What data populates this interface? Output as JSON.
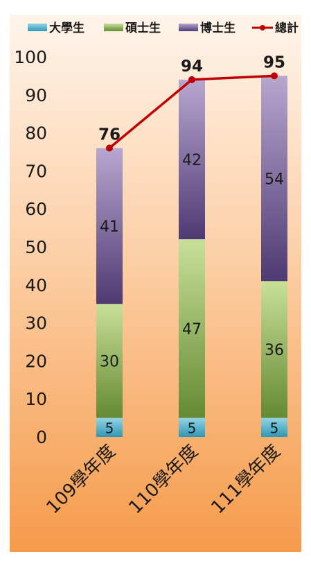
{
  "chart_data": {
    "type": "bar",
    "stacked": true,
    "categories": [
      "109學年度",
      "110學年度",
      "111學年度"
    ],
    "series": [
      {
        "name": "大學生",
        "values": [
          5,
          5,
          5
        ],
        "color": "#4bacc6"
      },
      {
        "name": "碩士生",
        "values": [
          30,
          47,
          36
        ],
        "color": "#9bbb59"
      },
      {
        "name": "博士生",
        "values": [
          41,
          42,
          54
        ],
        "color": "#8064a2"
      }
    ],
    "line_series": {
      "name": "總計",
      "values": [
        76,
        94,
        95
      ],
      "color": "#c00000"
    },
    "ylim": [
      0,
      100
    ],
    "yticks": [
      0,
      10,
      20,
      30,
      40,
      50,
      60,
      70,
      80,
      90,
      100
    ],
    "grid": false,
    "legend_position": "top",
    "background": "orange-gradient"
  }
}
